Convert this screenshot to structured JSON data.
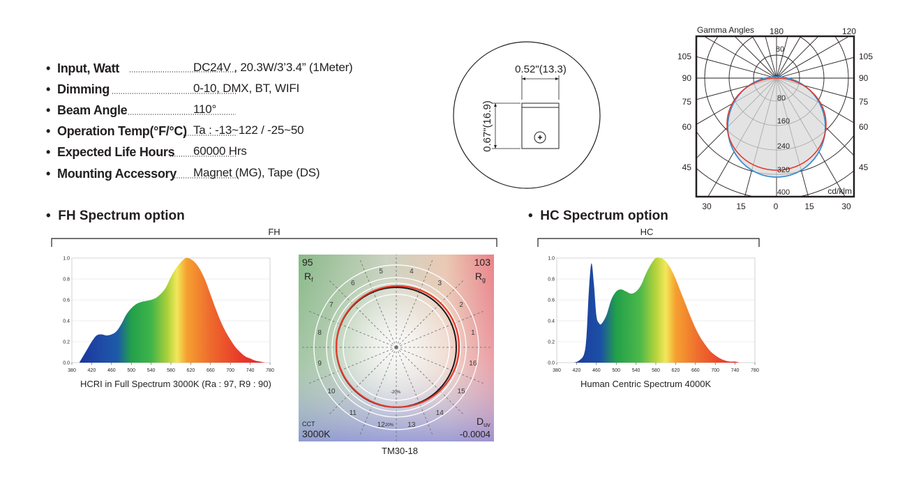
{
  "specs": [
    {
      "label": "Input, Watt",
      "value": "DC24V ,  20.3W/3’3.4” (1Meter)"
    },
    {
      "label": "Dimming",
      "value": "0-10,  DMX, BT, WIFI"
    },
    {
      "label": "Beam Angle",
      "value": "110°"
    },
    {
      "label": "Operation Temp(°F/°C)",
      "value": "Ta : -13~122 / -25~50"
    },
    {
      "label": "Expected Life Hours",
      "value": "60000 Hrs"
    },
    {
      "label": "Mounting Accessory",
      "value": "Magnet (MG),  Tape (DS)"
    }
  ],
  "bullet": "•",
  "dimension": {
    "width": "0.52\"(13.3)",
    "height": "0.67\"(16.9)"
  },
  "polar": {
    "title": "Gamma Angles",
    "unit": "cd/klm",
    "top_labels": [
      "180",
      "120"
    ],
    "left_angles": [
      "105",
      "90",
      "75",
      "60",
      "45"
    ],
    "right_angles": [
      "105",
      "90",
      "75",
      "60",
      "45"
    ],
    "bottom_labels": [
      "30",
      "15",
      "0",
      "15",
      "30"
    ],
    "radial_labels": [
      "80",
      "80",
      "160",
      "240",
      "320",
      "400"
    ]
  },
  "fh": {
    "section_title": "FH Spectrum option",
    "bracket_label": "FH",
    "chart_caption": "HCRI in Full Spectrum 3000K (Ra : 97, R9 : 90)",
    "tm30_caption": "TM30-18"
  },
  "hc": {
    "section_title": "HC Spectrum option",
    "bracket_label": "HC",
    "chart_caption": "Human Centric Spectrum 4000K"
  },
  "tm30": {
    "rf_value": "95",
    "rf_label": "R",
    "rf_sub": "f",
    "rg_value": "103",
    "rg_label": "R",
    "rg_sub": "g",
    "cct_label": "CCT",
    "cct_value": "3000K",
    "duv_label": "D",
    "duv_sub": "uv",
    "duv_value": "-0.0004",
    "hue_bins": [
      "1",
      "2",
      "3",
      "4",
      "5",
      "6",
      "7",
      "8",
      "9",
      "10",
      "11",
      "12",
      "13",
      "14",
      "15",
      "16"
    ],
    "pct_labels": [
      "-20%",
      "20%"
    ]
  },
  "chart_data": [
    {
      "type": "area",
      "title": "HCRI in Full Spectrum 3000K (Ra : 97, R9 : 90)",
      "xlabel": "",
      "ylabel": "",
      "xlim": [
        380,
        780
      ],
      "ylim": [
        0,
        1.0
      ],
      "x_ticks": [
        "380",
        "420",
        "460",
        "500",
        "540",
        "580",
        "620",
        "660",
        "700",
        "740",
        "780"
      ],
      "y_ticks": [
        "0.0",
        "0.2",
        "0.4",
        "0.6",
        "0.8",
        "1.0"
      ],
      "x": [
        395,
        410,
        420,
        430,
        440,
        450,
        460,
        470,
        480,
        490,
        500,
        510,
        520,
        530,
        540,
        550,
        560,
        570,
        580,
        590,
        600,
        610,
        620,
        630,
        640,
        650,
        660,
        670,
        680,
        690,
        700,
        710,
        720,
        730,
        740,
        750,
        760,
        770
      ],
      "values": [
        0.0,
        0.12,
        0.2,
        0.26,
        0.27,
        0.26,
        0.27,
        0.3,
        0.37,
        0.46,
        0.52,
        0.56,
        0.58,
        0.59,
        0.6,
        0.62,
        0.66,
        0.72,
        0.82,
        0.9,
        0.96,
        1.0,
        0.99,
        0.95,
        0.88,
        0.78,
        0.65,
        0.52,
        0.4,
        0.3,
        0.22,
        0.15,
        0.1,
        0.06,
        0.04,
        0.02,
        0.01,
        0.0
      ]
    },
    {
      "type": "area",
      "title": "Human Centric Spectrum 4000K",
      "xlabel": "",
      "ylabel": "",
      "xlim": [
        380,
        780
      ],
      "ylim": [
        0,
        1.0
      ],
      "x_ticks": [
        "380",
        "420",
        "460",
        "500",
        "540",
        "580",
        "620",
        "660",
        "700",
        "740",
        "780"
      ],
      "y_ticks": [
        "0.0",
        "0.2",
        "0.4",
        "0.6",
        "0.8",
        "1.0"
      ],
      "x": [
        415,
        425,
        435,
        440,
        445,
        450,
        455,
        460,
        465,
        470,
        480,
        490,
        500,
        510,
        520,
        530,
        540,
        550,
        560,
        570,
        580,
        590,
        600,
        610,
        620,
        630,
        640,
        650,
        660,
        670,
        680,
        690,
        700,
        710,
        720,
        730,
        740,
        750,
        760
      ],
      "values": [
        0.0,
        0.02,
        0.08,
        0.25,
        0.7,
        0.95,
        0.75,
        0.45,
        0.38,
        0.37,
        0.45,
        0.6,
        0.68,
        0.7,
        0.68,
        0.66,
        0.68,
        0.74,
        0.85,
        0.94,
        1.0,
        1.0,
        0.97,
        0.9,
        0.8,
        0.68,
        0.56,
        0.44,
        0.33,
        0.24,
        0.17,
        0.11,
        0.07,
        0.04,
        0.02,
        0.01,
        0.01,
        0.0,
        0.0
      ]
    }
  ]
}
